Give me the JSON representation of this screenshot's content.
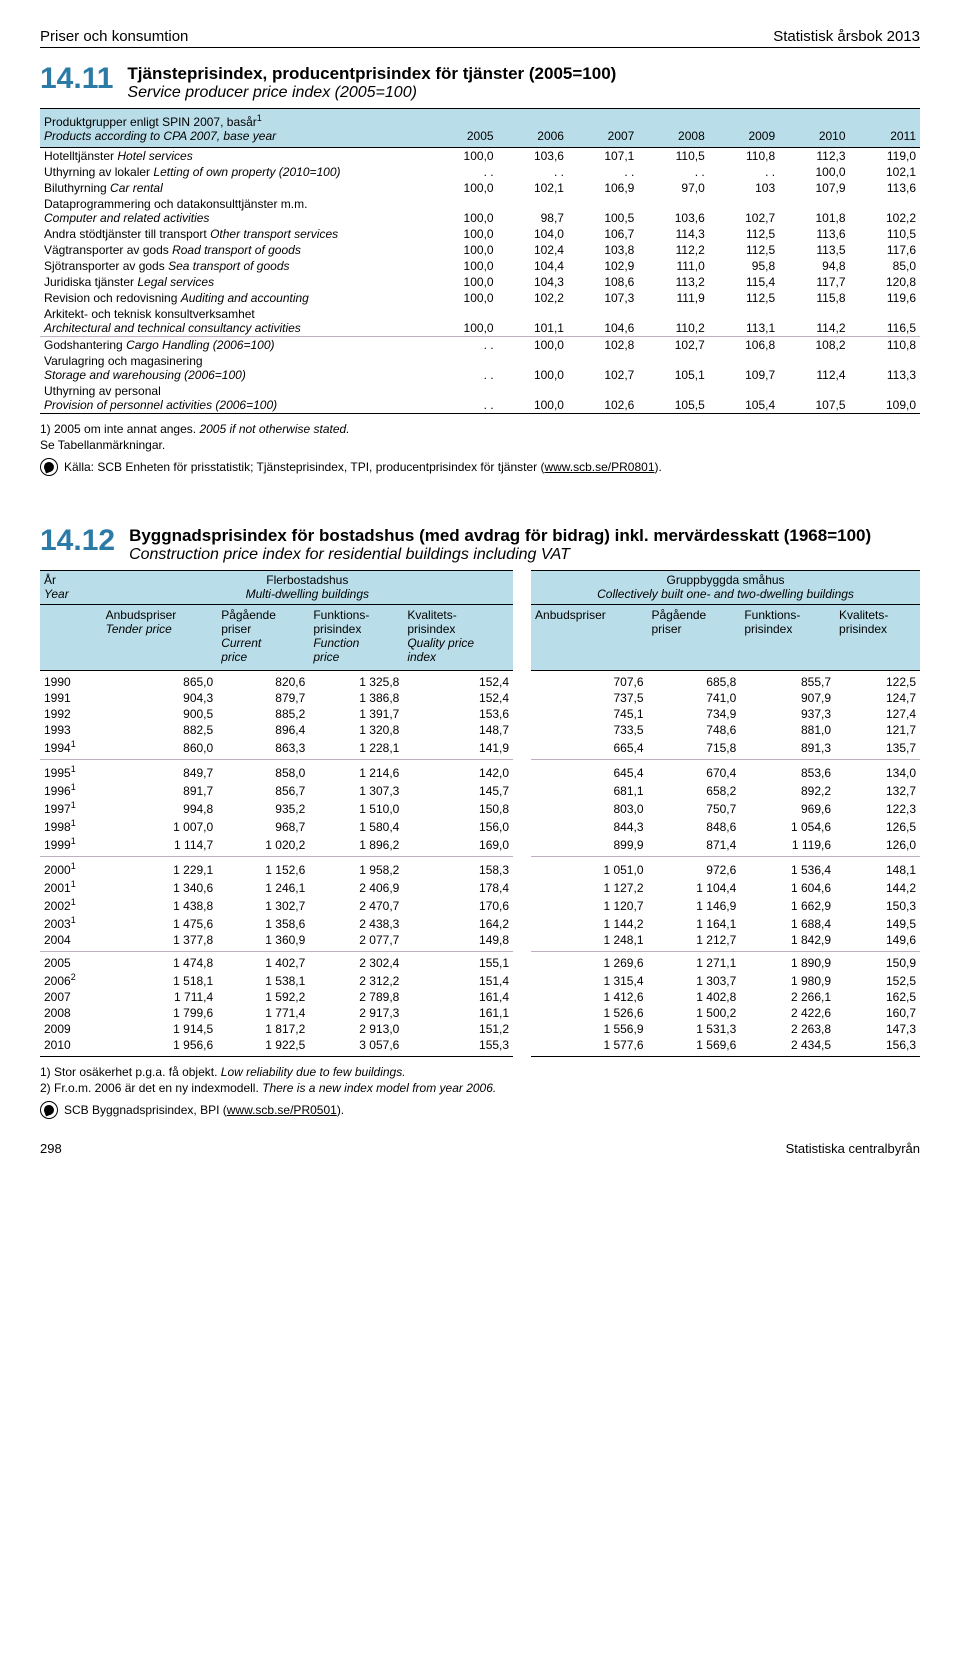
{
  "header": {
    "left": "Priser och konsumtion",
    "right": "Statistisk årsbok 2013"
  },
  "section1": {
    "num": "14.11",
    "title_sv": "Tjänsteprisindex, producentprisindex för tjänster (2005=100)",
    "title_en": "Service producer price index (2005=100)",
    "col_label_sv": "Produktgrupper enligt SPIN 2007, basår",
    "col_label_sup": "1",
    "col_label_en": "Products according to CPA 2007, base year",
    "years": [
      "2005",
      "2006",
      "2007",
      "2008",
      "2009",
      "2010",
      "2011"
    ]
  },
  "t1rows": [
    {
      "label": "Hotelltjänster <span class='em'>Hotel services</span>",
      "v": [
        "100,0",
        "103,6",
        "107,1",
        "110,5",
        "110,8",
        "112,3",
        "119,0"
      ]
    },
    {
      "label": "Uthyrning av lokaler <span class='em'>Letting of own property (2010=100)</span>",
      "v": [
        ". .",
        ". .",
        ". .",
        ". .",
        ". .",
        "100,0",
        "102,1"
      ]
    },
    {
      "label": "Biluthyrning <span class='em'>Car rental</span>",
      "v": [
        "100,0",
        "102,1",
        "106,9",
        "97,0",
        "103",
        "107,9",
        "113,6"
      ]
    },
    {
      "label": "Dataprogrammering och datakonsulttjänster m.m.<br><span class='em'>Computer and related activities</span>",
      "v": [
        "100,0",
        "98,7",
        "100,5",
        "103,6",
        "102,7",
        "101,8",
        "102,2"
      ]
    },
    {
      "label": "Andra stödtjänster till transport <span class='em'>Other transport services</span>",
      "v": [
        "100,0",
        "104,0",
        "106,7",
        "114,3",
        "112,5",
        "113,6",
        "110,5"
      ]
    },
    {
      "label": "Vägtransporter av gods <span class='em'>Road transport of goods</span>",
      "v": [
        "100,0",
        "102,4",
        "103,8",
        "112,2",
        "112,5",
        "113,5",
        "117,6"
      ]
    },
    {
      "label": "Sjötransporter av gods <span class='em'>Sea transport of goods</span>",
      "v": [
        "100,0",
        "104,4",
        "102,9",
        "111,0",
        "95,8",
        "94,8",
        "85,0"
      ]
    },
    {
      "label": "Juridiska tjänster <span class='em'>Legal services</span>",
      "v": [
        "100,0",
        "104,3",
        "108,6",
        "113,2",
        "115,4",
        "117,7",
        "120,8"
      ]
    },
    {
      "label": "Revision och redovisning <span class='em'>Auditing and accounting</span>",
      "v": [
        "100,0",
        "102,2",
        "107,3",
        "111,9",
        "112,5",
        "115,8",
        "119,6"
      ]
    },
    {
      "label": "Arkitekt- och teknisk konsultverksamhet<br><span class='em'>Architectural and technical consultancy activities</span>",
      "v": [
        "100,0",
        "101,1",
        "104,6",
        "110,2",
        "113,1",
        "114,2",
        "116,5"
      ]
    },
    {
      "label": "Godshantering <span class='em'>Cargo Handling (2006=100)</span>",
      "v": [
        ". .",
        "100,0",
        "102,8",
        "102,7",
        "106,8",
        "108,2",
        "110,8"
      ],
      "sep": true
    },
    {
      "label": "Varulagring och magasinering<br><span class='em'>Storage and warehousing (2006=100)</span>",
      "v": [
        ". .",
        "100,0",
        "102,7",
        "105,1",
        "109,7",
        "112,4",
        "113,3"
      ]
    },
    {
      "label": "Uthyrning av personal<br><span class='em'>Provision of personnel activities (2006=100)</span>",
      "v": [
        ". .",
        "100,0",
        "102,6",
        "105,5",
        "105,4",
        "107,5",
        "109,0"
      ]
    }
  ],
  "notes1": {
    "n1": "1) 2005 om inte annat anges. 2005 if not otherwise stated.",
    "n2": "Se Tabellanmärkningar.",
    "src": "Källa: SCB Enheten för prisstatistik; Tjänsteprisindex, TPI, producentprisindex för tjänster (",
    "src_link": "www.scb.se/PR0801",
    "src_tail": ")."
  },
  "section2": {
    "num": "14.12",
    "title_sv": "Byggnadsprisindex för bostadshus (med avdrag för bidrag) inkl. mervärdesskatt (1968=100)",
    "title_en": "Construction price index for residential buildings including VAT",
    "hdr_year_sv": "År",
    "hdr_year_en": "Year",
    "group1_sv": "Flerbostadshus",
    "group1_en": "Multi-dwelling buildings",
    "group2_sv": "Gruppbyggda småhus",
    "group2_en": "Collectively built one- and two-dwelling buildings",
    "cols": [
      {
        "sv": "Anbudspriser",
        "en": "Tender price"
      },
      {
        "sv": "Pågående priser",
        "en": "Current price"
      },
      {
        "sv": "Funktions-prisindex",
        "en": "Function price"
      },
      {
        "sv": "Kvalitets-prisindex",
        "en": "Quality price index"
      },
      {
        "sv": "Anbudspriser",
        "en": ""
      },
      {
        "sv": "Pågående priser",
        "en": ""
      },
      {
        "sv": "Funktions-prisindex",
        "en": ""
      },
      {
        "sv": "Kvalitets-prisindex",
        "en": ""
      }
    ]
  },
  "t2rows": [
    {
      "y": "1990",
      "v": [
        "865,0",
        "820,6",
        "1 325,8",
        "152,4",
        "707,6",
        "685,8",
        "855,7",
        "122,5"
      ],
      "block": "start"
    },
    {
      "y": "1991",
      "v": [
        "904,3",
        "879,7",
        "1 386,8",
        "152,4",
        "737,5",
        "741,0",
        "907,9",
        "124,7"
      ]
    },
    {
      "y": "1992",
      "v": [
        "900,5",
        "885,2",
        "1 391,7",
        "153,6",
        "745,1",
        "734,9",
        "937,3",
        "127,4"
      ]
    },
    {
      "y": "1993",
      "v": [
        "882,5",
        "896,4",
        "1 320,8",
        "148,7",
        "733,5",
        "748,6",
        "881,0",
        "121,7"
      ]
    },
    {
      "y": "1994",
      "sup": "1",
      "v": [
        "860,0",
        "863,3",
        "1 228,1",
        "141,9",
        "665,4",
        "715,8",
        "891,3",
        "135,7"
      ],
      "block": "end"
    },
    {
      "y": "1995",
      "sup": "1",
      "v": [
        "849,7",
        "858,0",
        "1 214,6",
        "142,0",
        "645,4",
        "670,4",
        "853,6",
        "134,0"
      ],
      "block": "start"
    },
    {
      "y": "1996",
      "sup": "1",
      "v": [
        "891,7",
        "856,7",
        "1 307,3",
        "145,7",
        "681,1",
        "658,2",
        "892,2",
        "132,7"
      ]
    },
    {
      "y": "1997",
      "sup": "1",
      "v": [
        "994,8",
        "935,2",
        "1 510,0",
        "150,8",
        "803,0",
        "750,7",
        "969,6",
        "122,3"
      ]
    },
    {
      "y": "1998",
      "sup": "1",
      "v": [
        "1 007,0",
        "968,7",
        "1 580,4",
        "156,0",
        "844,3",
        "848,6",
        "1 054,6",
        "126,5"
      ]
    },
    {
      "y": "1999",
      "sup": "1",
      "v": [
        "1 114,7",
        "1 020,2",
        "1 896,2",
        "169,0",
        "899,9",
        "871,4",
        "1 119,6",
        "126,0"
      ],
      "block": "end"
    },
    {
      "y": "2000",
      "sup": "1",
      "v": [
        "1 229,1",
        "1 152,6",
        "1 958,2",
        "158,3",
        "1 051,0",
        "972,6",
        "1 536,4",
        "148,1"
      ],
      "block": "start"
    },
    {
      "y": "2001",
      "sup": "1",
      "v": [
        "1 340,6",
        "1 246,1",
        "2 406,9",
        "178,4",
        "1 127,2",
        "1 104,4",
        "1 604,6",
        "144,2"
      ]
    },
    {
      "y": "2002",
      "sup": "1",
      "v": [
        "1 438,8",
        "1 302,7",
        "2 470,7",
        "170,6",
        "1 120,7",
        "1 146,9",
        "1 662,9",
        "150,3"
      ]
    },
    {
      "y": "2003",
      "sup": "1",
      "v": [
        "1 475,6",
        "1 358,6",
        "2 438,3",
        "164,2",
        "1 144,2",
        "1 164,1",
        "1 688,4",
        "149,5"
      ]
    },
    {
      "y": "2004",
      "v": [
        "1 377,8",
        "1 360,9",
        "2 077,7",
        "149,8",
        "1 248,1",
        "1 212,7",
        "1 842,9",
        "149,6"
      ],
      "block": "end"
    },
    {
      "y": "2005",
      "v": [
        "1 474,8",
        "1 402,7",
        "2 302,4",
        "155,1",
        "1 269,6",
        "1 271,1",
        "1 890,9",
        "150,9"
      ],
      "block": "start"
    },
    {
      "y": "2006",
      "sup": "2",
      "v": [
        "1 518,1",
        "1 538,1",
        "2 312,2",
        "151,4",
        "1 315,4",
        "1 303,7",
        "1 980,9",
        "152,5"
      ]
    },
    {
      "y": "2007",
      "v": [
        "1 711,4",
        "1 592,2",
        "2 789,8",
        "161,4",
        "1 412,6",
        "1 402,8",
        "2 266,1",
        "162,5"
      ]
    },
    {
      "y": "2008",
      "v": [
        "1 799,6",
        "1 771,4",
        "2 917,3",
        "161,1",
        "1 526,6",
        "1 500,2",
        "2 422,6",
        "160,7"
      ]
    },
    {
      "y": "2009",
      "v": [
        "1 914,5",
        "1 817,2",
        "2 913,0",
        "151,2",
        "1 556,9",
        "1 531,3",
        "2 263,8",
        "147,3"
      ]
    },
    {
      "y": "2010",
      "v": [
        "1 956,6",
        "1 922,5",
        "3 057,6",
        "155,3",
        "1 577,6",
        "1 569,6",
        "2 434,5",
        "156,3"
      ],
      "block": "end"
    }
  ],
  "notes2": {
    "n1": "1) Stor osäkerhet p.g.a. få objekt. Low reliability due to few buildings.",
    "n2": "2) Fr.o.m. 2006 är det en ny indexmodell. There is a new index model from year 2006.",
    "src": "SCB Byggnadsprisindex, BPI (",
    "src_link": "www.scb.se/PR0501",
    "src_tail": ")."
  },
  "footer": {
    "page": "298",
    "pub": "Statistiska centralbyrån"
  }
}
